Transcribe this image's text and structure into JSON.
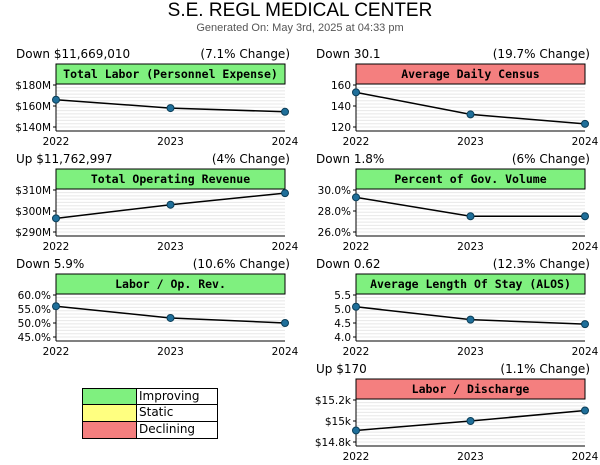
{
  "header": {
    "title": "S.E. REGL MEDICAL CENTER",
    "subtitle": "Generated On: May 3rd, 2025 at 04:33 pm"
  },
  "colors": {
    "improving": "#7ff07f",
    "static": "#ffff80",
    "declining": "#f47f7f",
    "line": "#000000",
    "marker": "#1f6f9a",
    "grid": "#e8e8e8"
  },
  "legend": [
    {
      "label": "Improving",
      "color": "#7ff07f"
    },
    {
      "label": "Static",
      "color": "#ffff80"
    },
    {
      "label": "Declining",
      "color": "#f47f7f"
    }
  ],
  "chart_data": [
    {
      "type": "line",
      "title": "Total Labor (Personnel Expense)",
      "status": "improving",
      "change_left": "Down $11,669,010",
      "change_right": "(7.1% Change)",
      "x": [
        "2022",
        "2023",
        "2024"
      ],
      "values": [
        166,
        158,
        154.5
      ],
      "ylim": [
        140,
        180
      ],
      "yticks": [
        "$180M",
        "$160M",
        "$140M"
      ],
      "ytick_values": [
        180,
        160,
        140
      ]
    },
    {
      "type": "line",
      "title": "Average Daily Census",
      "status": "declining",
      "change_left": "Down 30.1",
      "change_right": "(19.7% Change)",
      "x": [
        "2022",
        "2023",
        "2024"
      ],
      "values": [
        153,
        132,
        123
      ],
      "ylim": [
        120,
        160
      ],
      "yticks": [
        "160",
        "140",
        "120"
      ],
      "ytick_values": [
        160,
        140,
        120
      ]
    },
    {
      "type": "line",
      "title": "Total Operating Revenue",
      "status": "improving",
      "change_left": "Up $11,762,997",
      "change_right": "(4% Change)",
      "x": [
        "2022",
        "2023",
        "2024"
      ],
      "values": [
        296.5,
        303,
        308.5
      ],
      "ylim": [
        290,
        310
      ],
      "yticks": [
        "$310M",
        "$300M",
        "$290M"
      ],
      "ytick_values": [
        310,
        300,
        290
      ]
    },
    {
      "type": "line",
      "title": "Percent of Gov. Volume",
      "status": "improving",
      "change_left": "Down 1.8%",
      "change_right": "(6% Change)",
      "x": [
        "2022",
        "2023",
        "2024"
      ],
      "values": [
        29.3,
        27.5,
        27.5
      ],
      "ylim": [
        26,
        30
      ],
      "yticks": [
        "30.0%",
        "28.0%",
        "26.0%"
      ],
      "ytick_values": [
        30,
        28,
        26
      ]
    },
    {
      "type": "line",
      "title": "Labor / Op. Rev.",
      "status": "improving",
      "change_left": "Down 5.9%",
      "change_right": "(10.6% Change)",
      "x": [
        "2022",
        "2023",
        "2024"
      ],
      "values": [
        56.0,
        51.8,
        50.0
      ],
      "ylim": [
        45,
        60
      ],
      "yticks": [
        "60.0%",
        "55.0%",
        "50.0%",
        "45.0%"
      ],
      "ytick_values": [
        60,
        55,
        50,
        45
      ]
    },
    {
      "type": "line",
      "title": "Average Length Of Stay (ALOS)",
      "status": "improving",
      "change_left": "Down 0.62",
      "change_right": "(12.3% Change)",
      "x": [
        "2022",
        "2023",
        "2024"
      ],
      "values": [
        5.08,
        4.62,
        4.46
      ],
      "ylim": [
        4.0,
        5.5
      ],
      "yticks": [
        "5.5",
        "5.0",
        "4.5",
        "4.0"
      ],
      "ytick_values": [
        5.5,
        5.0,
        4.5,
        4.0
      ]
    },
    {
      "type": "line",
      "title": "Labor / Discharge",
      "status": "declining",
      "change_left": "Up $170",
      "change_right": "(1.1% Change)",
      "x": [
        "2022",
        "2023",
        "2024"
      ],
      "values": [
        14.91,
        15.0,
        15.1
      ],
      "ylim": [
        14.8,
        15.2
      ],
      "yticks": [
        "$15.2k",
        "$15k",
        "$14.8k"
      ],
      "ytick_values": [
        15.2,
        15.0,
        14.8
      ]
    }
  ]
}
